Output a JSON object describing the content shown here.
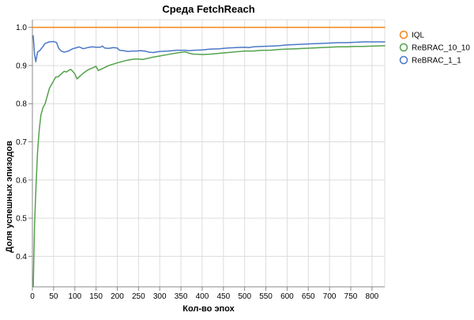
{
  "chart_data": {
    "type": "line",
    "title": "Среда FetchReach",
    "xlabel": "Кол-во эпох",
    "ylabel": "Доля успешных эпизодов",
    "xlim": [
      0,
      830
    ],
    "ylim": [
      0.32,
      1.02
    ],
    "x_ticks": [
      0,
      50,
      100,
      150,
      200,
      250,
      300,
      350,
      400,
      450,
      500,
      550,
      600,
      650,
      700,
      750,
      800
    ],
    "y_ticks": [
      0.4,
      0.5,
      0.6,
      0.7,
      0.8,
      0.9,
      1.0
    ],
    "y_tick_labels": [
      "0.4",
      "0.5",
      "0.6",
      "0.7",
      "0.8",
      "0.9",
      "1.0"
    ],
    "grid": true,
    "legend_position": "right",
    "series": [
      {
        "name": "IQL",
        "color": "#f58518",
        "points": [
          [
            0,
            1.0
          ],
          [
            830,
            1.0
          ]
        ]
      },
      {
        "name": "ReBRAC_10_10",
        "color": "#54a24b",
        "points": [
          [
            2,
            0.32
          ],
          [
            5,
            0.48
          ],
          [
            8,
            0.57
          ],
          [
            12,
            0.67
          ],
          [
            16,
            0.73
          ],
          [
            20,
            0.77
          ],
          [
            25,
            0.79
          ],
          [
            30,
            0.8
          ],
          [
            35,
            0.82
          ],
          [
            40,
            0.84
          ],
          [
            45,
            0.85
          ],
          [
            50,
            0.86
          ],
          [
            55,
            0.87
          ],
          [
            60,
            0.87
          ],
          [
            65,
            0.875
          ],
          [
            70,
            0.88
          ],
          [
            75,
            0.885
          ],
          [
            80,
            0.883
          ],
          [
            85,
            0.887
          ],
          [
            90,
            0.89
          ],
          [
            95,
            0.885
          ],
          [
            100,
            0.878
          ],
          [
            105,
            0.865
          ],
          [
            110,
            0.87
          ],
          [
            120,
            0.88
          ],
          [
            130,
            0.888
          ],
          [
            140,
            0.893
          ],
          [
            150,
            0.898
          ],
          [
            155,
            0.887
          ],
          [
            165,
            0.892
          ],
          [
            180,
            0.9
          ],
          [
            200,
            0.907
          ],
          [
            220,
            0.913
          ],
          [
            240,
            0.917
          ],
          [
            250,
            0.917
          ],
          [
            260,
            0.916
          ],
          [
            280,
            0.921
          ],
          [
            300,
            0.925
          ],
          [
            320,
            0.929
          ],
          [
            340,
            0.933
          ],
          [
            360,
            0.936
          ],
          [
            370,
            0.932
          ],
          [
            380,
            0.93
          ],
          [
            400,
            0.929
          ],
          [
            420,
            0.93
          ],
          [
            440,
            0.932
          ],
          [
            460,
            0.934
          ],
          [
            480,
            0.936
          ],
          [
            500,
            0.938
          ],
          [
            520,
            0.938
          ],
          [
            540,
            0.94
          ],
          [
            560,
            0.94
          ],
          [
            580,
            0.942
          ],
          [
            600,
            0.943
          ],
          [
            620,
            0.944
          ],
          [
            640,
            0.945
          ],
          [
            660,
            0.946
          ],
          [
            680,
            0.947
          ],
          [
            700,
            0.948
          ],
          [
            720,
            0.949
          ],
          [
            740,
            0.949
          ],
          [
            760,
            0.95
          ],
          [
            780,
            0.95
          ],
          [
            800,
            0.951
          ],
          [
            830,
            0.952
          ]
        ]
      },
      {
        "name": "ReBRAC_1_1",
        "color": "#4c78c7",
        "points": [
          [
            2,
            0.978
          ],
          [
            5,
            0.93
          ],
          [
            8,
            0.91
          ],
          [
            12,
            0.935
          ],
          [
            18,
            0.94
          ],
          [
            25,
            0.95
          ],
          [
            30,
            0.958
          ],
          [
            40,
            0.962
          ],
          [
            50,
            0.963
          ],
          [
            57,
            0.96
          ],
          [
            62,
            0.945
          ],
          [
            68,
            0.938
          ],
          [
            75,
            0.935
          ],
          [
            85,
            0.938
          ],
          [
            95,
            0.944
          ],
          [
            105,
            0.947
          ],
          [
            110,
            0.949
          ],
          [
            120,
            0.944
          ],
          [
            130,
            0.947
          ],
          [
            140,
            0.949
          ],
          [
            150,
            0.948
          ],
          [
            160,
            0.948
          ],
          [
            165,
            0.951
          ],
          [
            170,
            0.946
          ],
          [
            180,
            0.945
          ],
          [
            190,
            0.947
          ],
          [
            200,
            0.946
          ],
          [
            205,
            0.94
          ],
          [
            215,
            0.939
          ],
          [
            225,
            0.937
          ],
          [
            235,
            0.938
          ],
          [
            245,
            0.938
          ],
          [
            255,
            0.939
          ],
          [
            265,
            0.938
          ],
          [
            275,
            0.935
          ],
          [
            285,
            0.934
          ],
          [
            300,
            0.937
          ],
          [
            320,
            0.938
          ],
          [
            340,
            0.94
          ],
          [
            360,
            0.94
          ],
          [
            370,
            0.939
          ],
          [
            380,
            0.94
          ],
          [
            400,
            0.941
          ],
          [
            420,
            0.943
          ],
          [
            440,
            0.944
          ],
          [
            460,
            0.946
          ],
          [
            480,
            0.947
          ],
          [
            500,
            0.948
          ],
          [
            510,
            0.947
          ],
          [
            520,
            0.949
          ],
          [
            540,
            0.95
          ],
          [
            560,
            0.951
          ],
          [
            580,
            0.952
          ],
          [
            600,
            0.954
          ],
          [
            620,
            0.955
          ],
          [
            640,
            0.956
          ],
          [
            660,
            0.957
          ],
          [
            680,
            0.958
          ],
          [
            700,
            0.959
          ],
          [
            720,
            0.96
          ],
          [
            740,
            0.96
          ],
          [
            760,
            0.961
          ],
          [
            780,
            0.962
          ],
          [
            800,
            0.962
          ],
          [
            830,
            0.962
          ]
        ]
      }
    ]
  }
}
